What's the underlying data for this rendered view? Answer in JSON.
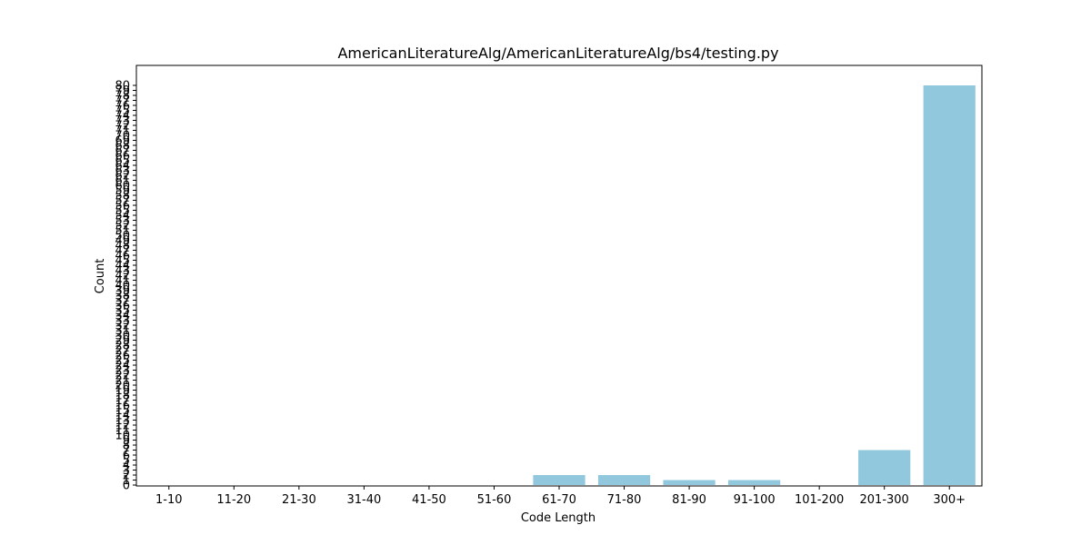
{
  "chart_data": {
    "type": "bar",
    "title": "AmericanLiteratureAlg/AmericanLiteratureAlg/bs4/testing.py",
    "xlabel": "Code Length",
    "ylabel": "Count",
    "categories": [
      "1-10",
      "11-20",
      "21-30",
      "31-40",
      "41-50",
      "51-60",
      "61-70",
      "71-80",
      "81-90",
      "91-100",
      "101-200",
      "201-300",
      "300+"
    ],
    "values": [
      0,
      0,
      0,
      0,
      0,
      0,
      2,
      2,
      1,
      1,
      0,
      7,
      80
    ],
    "ylim": [
      0,
      80
    ],
    "yticks": [
      0,
      1,
      2,
      3,
      4,
      5,
      6,
      7,
      8,
      9,
      10,
      11,
      12,
      13,
      14,
      15,
      16,
      17,
      18,
      19,
      20,
      21,
      22,
      23,
      24,
      25,
      26,
      27,
      28,
      29,
      30,
      31,
      32,
      33,
      34,
      35,
      36,
      37,
      38,
      39,
      40,
      41,
      42,
      43,
      44,
      45,
      46,
      47,
      48,
      49,
      50,
      51,
      52,
      53,
      54,
      55,
      56,
      57,
      58,
      59,
      60,
      61,
      62,
      63,
      64,
      65,
      66,
      67,
      68,
      69,
      70,
      71,
      72,
      73,
      74,
      75,
      76,
      77,
      78,
      79,
      80
    ],
    "bar_color": "#92c8dd",
    "grid": false,
    "legend": "none"
  }
}
